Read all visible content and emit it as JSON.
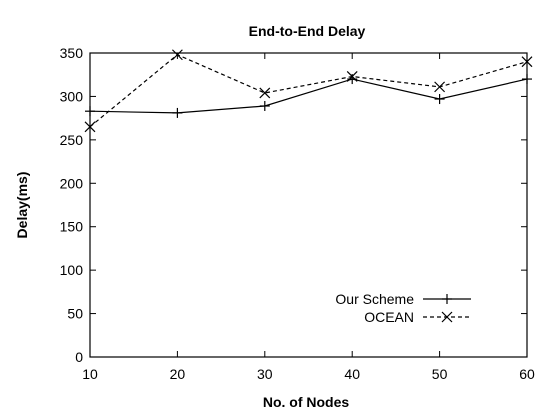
{
  "chart_data": {
    "type": "line",
    "title": "End-to-End Delay",
    "xlabel": "No. of Nodes",
    "ylabel": "Delay(ms)",
    "x": [
      10,
      20,
      30,
      40,
      50,
      60
    ],
    "xlim": [
      10,
      60
    ],
    "ylim": [
      0,
      350
    ],
    "xticks": [
      10,
      20,
      30,
      40,
      50,
      60
    ],
    "yticks": [
      0,
      50,
      100,
      150,
      200,
      250,
      300,
      350
    ],
    "grid": false,
    "legend_position": "bottom-right",
    "series": [
      {
        "name": "Our Scheme",
        "marker": "plus",
        "line_style": "solid",
        "color": "#000000",
        "values": [
          283,
          281,
          289,
          320,
          297,
          320
        ]
      },
      {
        "name": "OCEAN",
        "marker": "x",
        "line_style": "dashed",
        "color": "#000000",
        "values": [
          265,
          348,
          304,
          323,
          311,
          340
        ]
      }
    ]
  }
}
